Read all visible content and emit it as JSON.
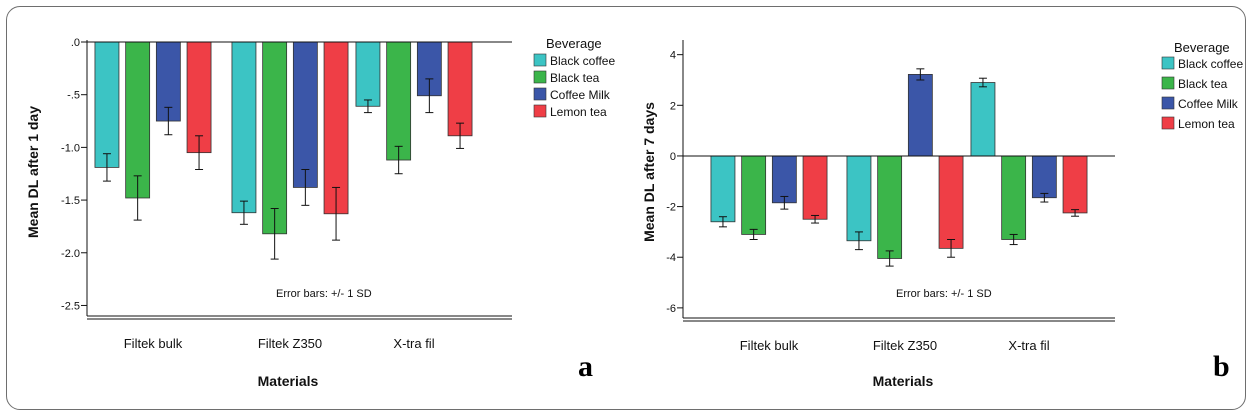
{
  "legend": {
    "title": "Beverage",
    "colors": [
      "#3cc4c4",
      "#3bb54a",
      "#3b56a8",
      "#ef3e46"
    ]
  },
  "chart_data": [
    {
      "type": "bar",
      "panel_label": "a",
      "categories": [
        "Filtek bulk",
        "Filtek Z350",
        "X-tra fil"
      ],
      "series": [
        {
          "name": "Black  coffee",
          "values": [
            -1.19,
            -1.62,
            -0.61
          ],
          "sd": [
            0.13,
            0.11,
            0.06
          ]
        },
        {
          "name": "Black tea",
          "values": [
            -1.48,
            -1.82,
            -1.12
          ],
          "sd": [
            0.21,
            0.24,
            0.13
          ]
        },
        {
          "name": "Coffee Milk",
          "values": [
            -0.75,
            -1.38,
            -0.51
          ],
          "sd": [
            0.13,
            0.17,
            0.16
          ]
        },
        {
          "name": "Lemon tea",
          "values": [
            -1.05,
            -1.63,
            -0.89
          ],
          "sd": [
            0.16,
            0.25,
            0.12
          ]
        }
      ],
      "xlabel": "Materials",
      "ylabel": "Mean DL after 1 day",
      "ylim": [
        -2.6,
        0
      ],
      "yticks": [
        0,
        -0.5,
        -1.0,
        -1.5,
        -2.0,
        -2.5
      ],
      "ytick_labels": [
        ".0",
        "-.5",
        "-1.0",
        "-1.5",
        "-2.0",
        "-2.5"
      ],
      "annotation": "Error bars: +/- 1 SD",
      "grid": false,
      "legend_position": "right"
    },
    {
      "type": "bar",
      "panel_label": "b",
      "categories": [
        "Filtek bulk",
        "Filtek Z350",
        "X-tra fil"
      ],
      "series": [
        {
          "name": "Black coffee",
          "values": [
            -2.6,
            -3.35,
            2.9
          ],
          "sd": [
            0.2,
            0.35,
            0.17
          ]
        },
        {
          "name": "Black tea",
          "values": [
            -3.1,
            -4.05,
            -3.3
          ],
          "sd": [
            0.2,
            0.3,
            0.2
          ]
        },
        {
          "name": "Coffee Milk",
          "values": [
            -1.85,
            3.22,
            -1.65
          ],
          "sd": [
            0.25,
            0.22,
            0.17
          ]
        },
        {
          "name": "Lemon tea",
          "values": [
            -2.5,
            -3.65,
            -2.25
          ],
          "sd": [
            0.15,
            0.35,
            0.13
          ]
        }
      ],
      "xlabel": "Materials",
      "ylabel": "Mean DL after 7 days",
      "ylim": [
        -6.4,
        4.5
      ],
      "yticks": [
        4,
        2,
        0,
        -2,
        -4,
        -6
      ],
      "ytick_labels": [
        "4",
        "2",
        "0",
        "-2",
        "-4",
        "-6"
      ],
      "annotation": "Error bars: +/- 1 SD",
      "grid": false,
      "legend_position": "right"
    }
  ]
}
